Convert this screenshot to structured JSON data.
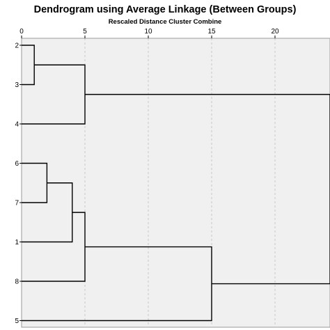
{
  "chart_data": {
    "type": "dendrogram",
    "title": "Dendrogram using Average Linkage (Between Groups)",
    "xlabel": "Rescaled Distance Cluster Combine",
    "xlim": [
      0,
      25
    ],
    "ticks": [
      0,
      5,
      10,
      15,
      20
    ],
    "grid": true,
    "leaves": [
      "2",
      "3",
      "4",
      "6",
      "7",
      "1",
      "8",
      "5"
    ],
    "merges": [
      {
        "a": "2",
        "b": "3",
        "height": 1.0,
        "id": "c23"
      },
      {
        "a": "c23",
        "b": "4",
        "height": 5.0,
        "id": "c234"
      },
      {
        "a": "6",
        "b": "7",
        "height": 2.0,
        "id": "c67"
      },
      {
        "a": "c67",
        "b": "1",
        "height": 4.0,
        "id": "c671"
      },
      {
        "a": "c671",
        "b": "8",
        "height": 5.0,
        "id": "c6718"
      },
      {
        "a": "c6718",
        "b": "5",
        "height": 15.0,
        "id": "c67185"
      },
      {
        "a": "c234",
        "b": "c67185",
        "height": 25.0,
        "id": "root"
      }
    ],
    "colors": {
      "plot_background": "#f0f0f0",
      "grid": "#c8c8c8",
      "line": "#000000"
    }
  }
}
